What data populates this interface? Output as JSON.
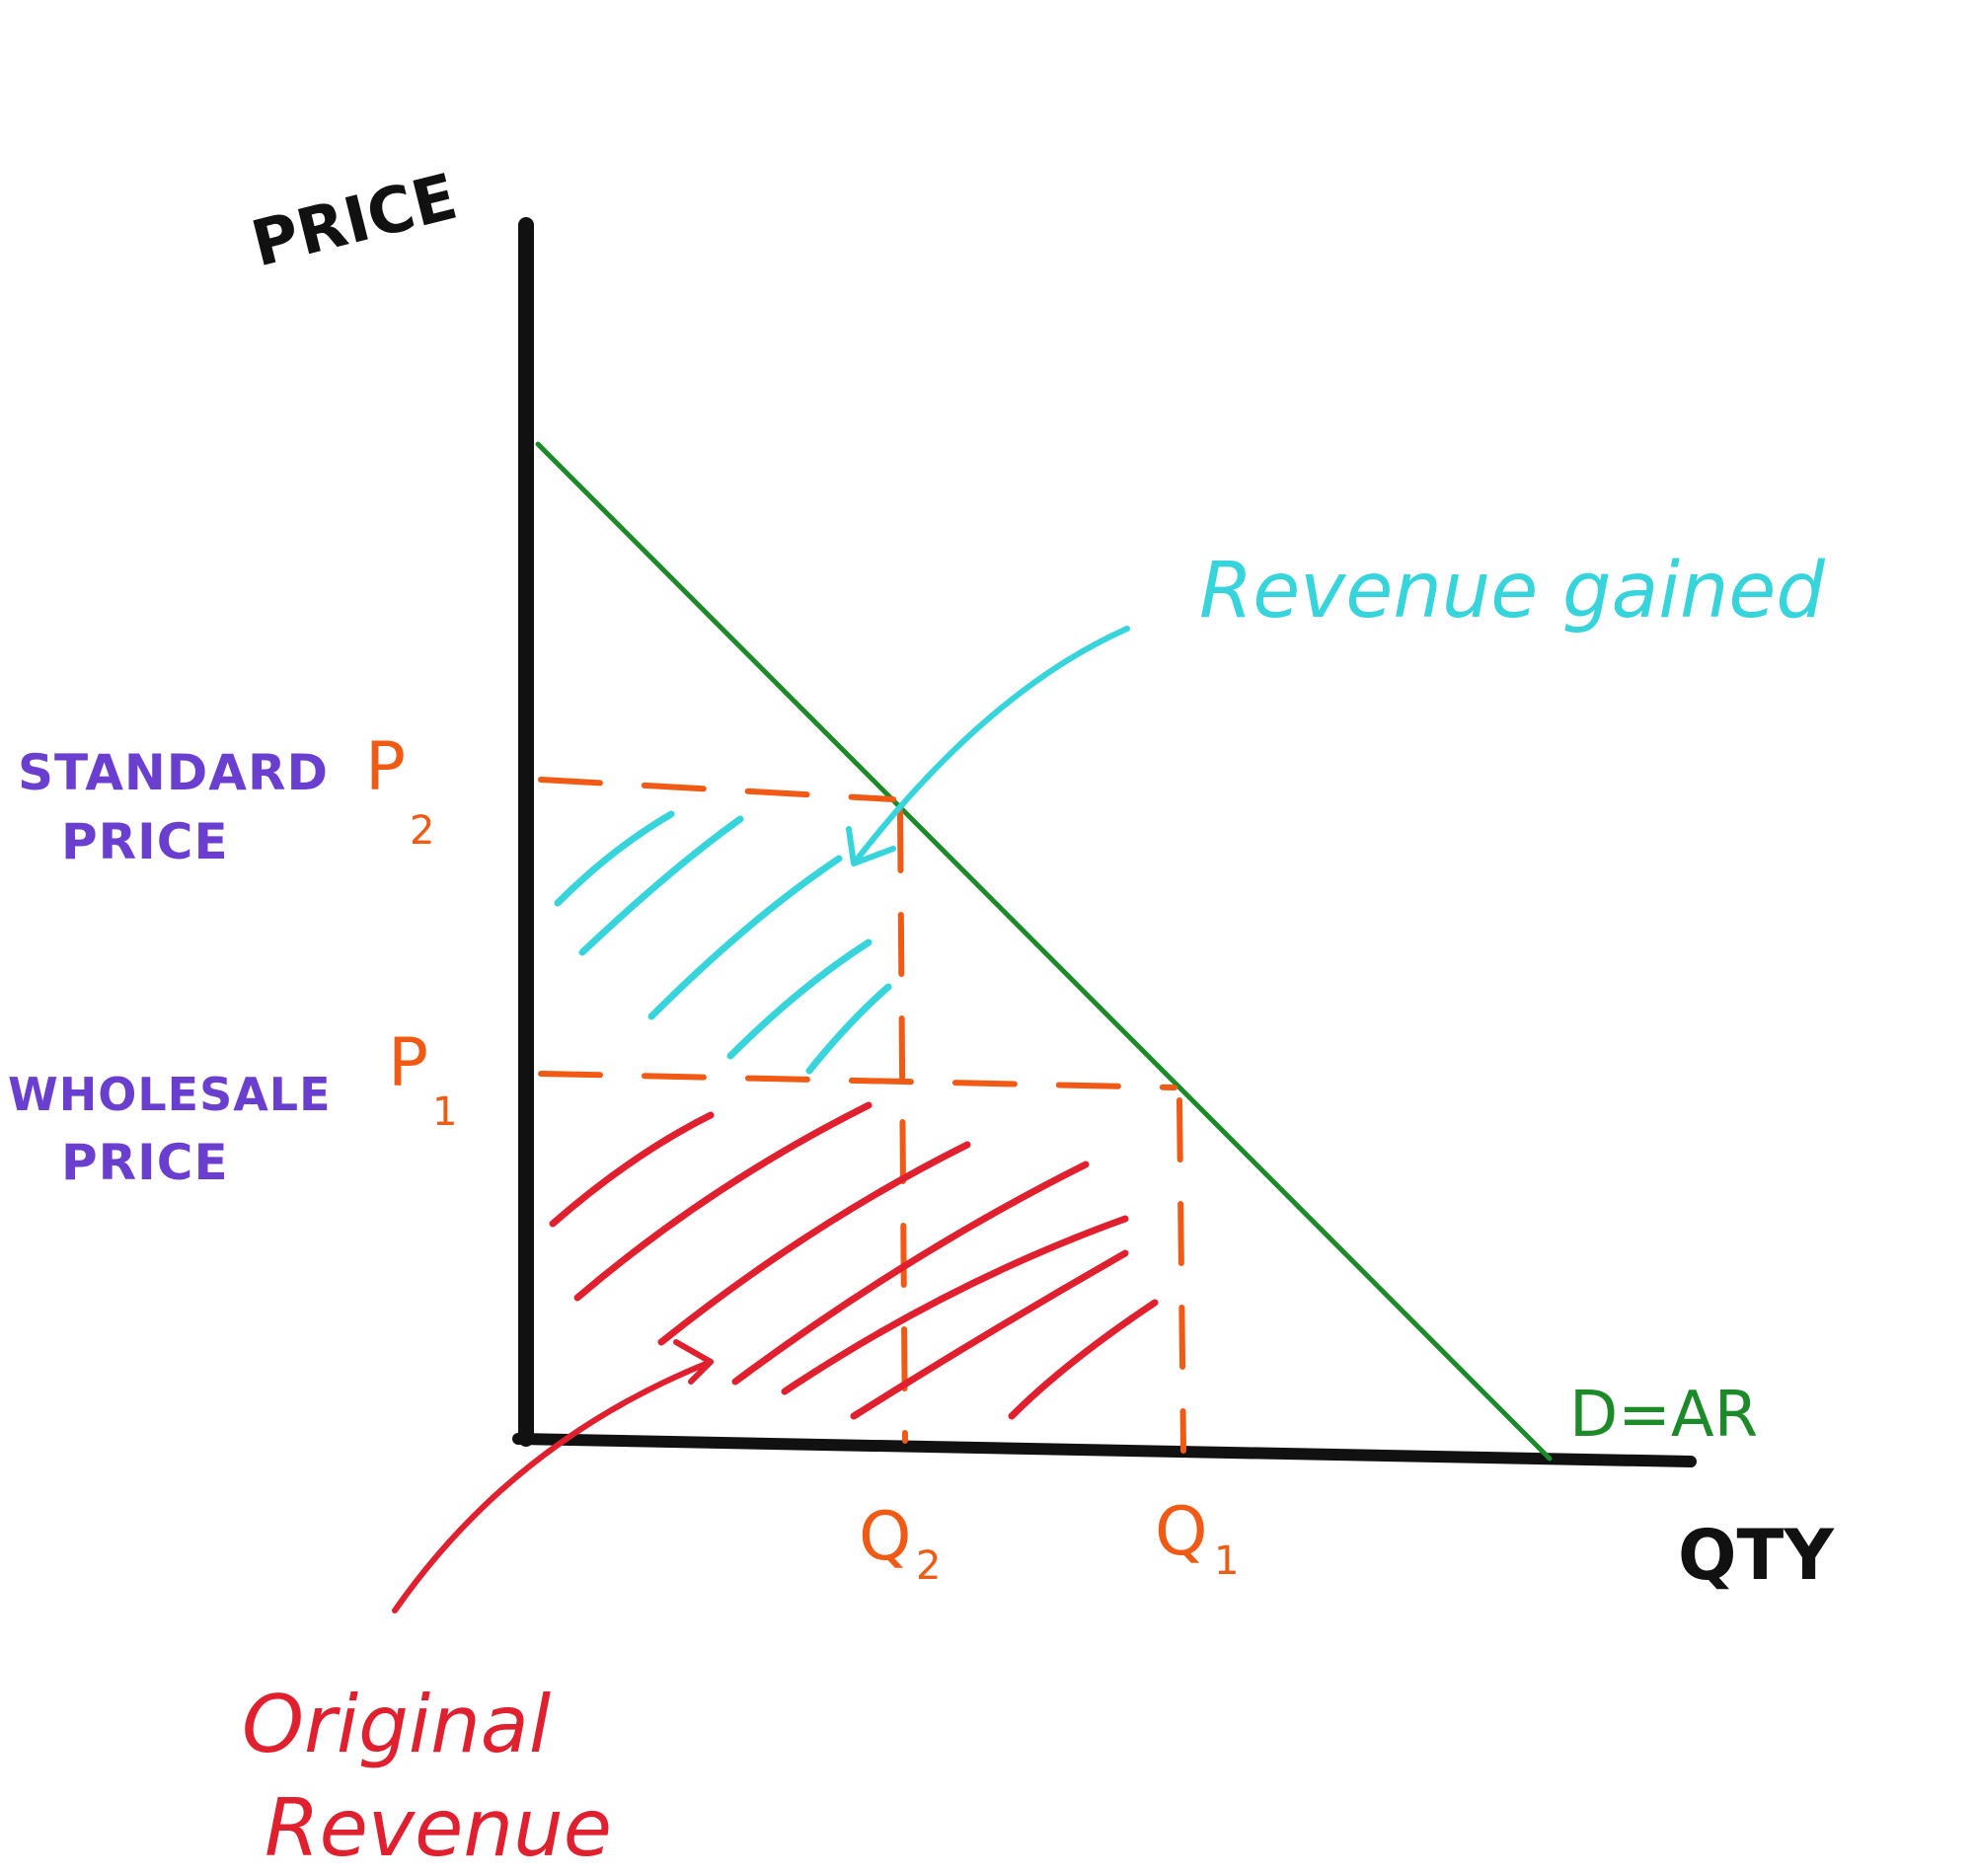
{
  "axes": {
    "y_label": "PRICE",
    "x_label": "QTY"
  },
  "demand_label": "D=AR",
  "prices": {
    "p2": {
      "symbol": "P",
      "subscript": "2",
      "line1": "STANDARD",
      "line2": "PRICE"
    },
    "p1": {
      "symbol": "P",
      "subscript": "1",
      "line1": "WHOLESALE",
      "line2": "PRICE"
    }
  },
  "quantities": {
    "q2": {
      "symbol": "Q",
      "subscript": "2"
    },
    "q1": {
      "symbol": "Q",
      "subscript": "1"
    }
  },
  "annotations": {
    "gained": "Revenue gained",
    "original_line1": "Original",
    "original_line2": "Revenue"
  },
  "colors": {
    "axis": "#111111",
    "demand": "#1d8a2a",
    "guides": "#f05a14",
    "gained": "#37d4dc",
    "original": "#e0202e",
    "price_names": "#6a3fd0"
  }
}
